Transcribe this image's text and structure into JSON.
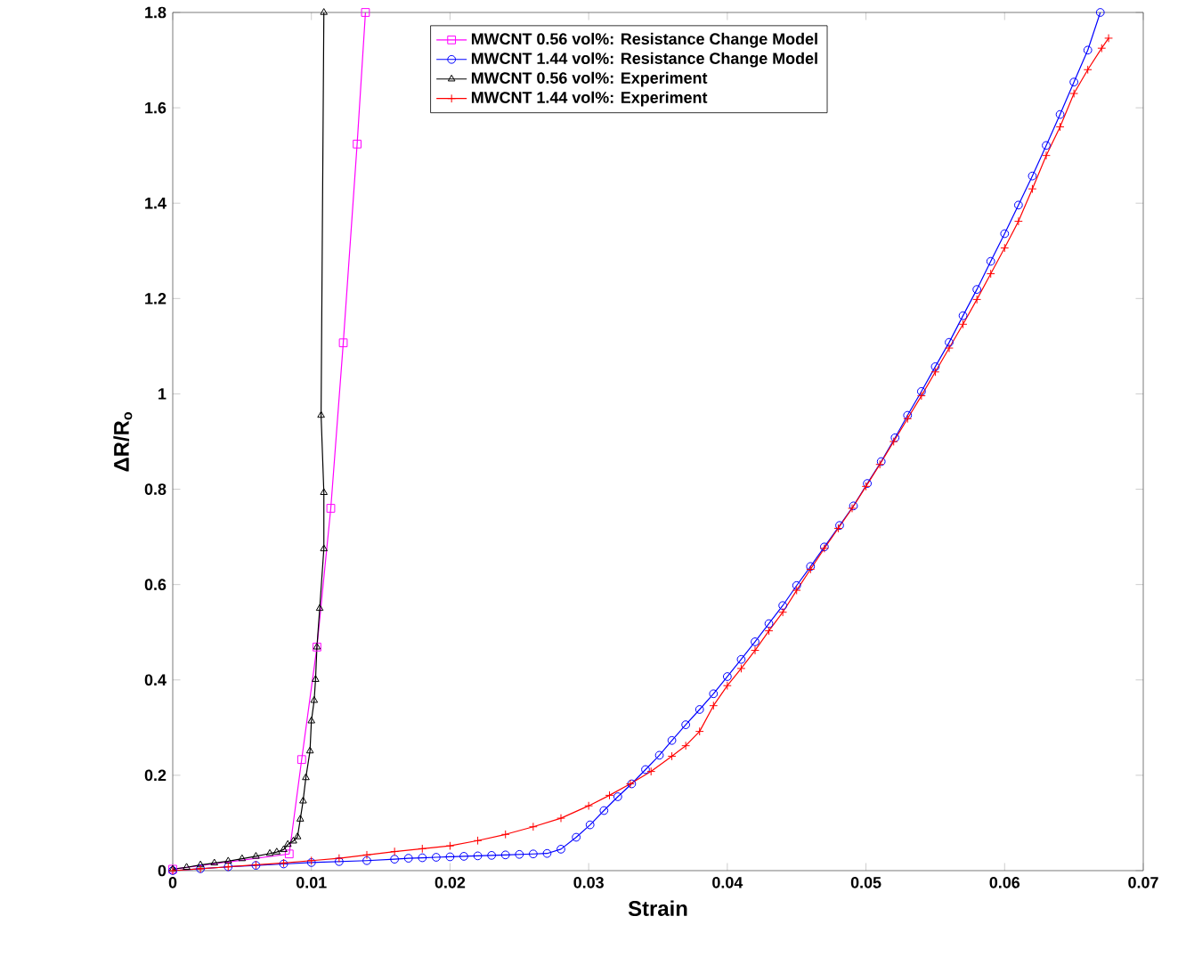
{
  "chart_data": {
    "type": "line",
    "xlabel": "Strain",
    "ylabel": "ΔR/R$_{o}$",
    "xlim": [
      0,
      0.07
    ],
    "ylim": [
      0,
      1.8
    ],
    "xticks": [
      0,
      0.01,
      0.02,
      0.03,
      0.04,
      0.05,
      0.06,
      0.07
    ],
    "yticks": [
      0,
      0.2,
      0.4,
      0.6,
      0.8,
      1,
      1.2,
      1.4,
      1.6,
      1.8
    ],
    "legend": "top",
    "line_style": "solid",
    "series": [
      {
        "name": "MWCNT 0.56 vol%: Resistance Change Model",
        "color": "#ff00ff",
        "marker": "square",
        "x": [
          0,
          0.0084,
          0.0093,
          0.0104,
          0.0114,
          0.0123,
          0.0133,
          0.0139
        ],
        "values": [
          0.003,
          0.035,
          0.233,
          0.469,
          0.76,
          1.107,
          1.524,
          1.8
        ]
      },
      {
        "name": "MWCNT 1.44 vol%: Resistance Change Model",
        "color": "#0000ff",
        "marker": "circle",
        "x": [
          0,
          0.002,
          0.004,
          0.006,
          0.008,
          0.01,
          0.012,
          0.014,
          0.016,
          0.017,
          0.018,
          0.019,
          0.02,
          0.021,
          0.022,
          0.023,
          0.024,
          0.025,
          0.026,
          0.027,
          0.028,
          0.0291,
          0.0301,
          0.0311,
          0.0321,
          0.0331,
          0.0341,
          0.0351,
          0.036,
          0.037,
          0.038,
          0.039,
          0.04,
          0.041,
          0.042,
          0.043,
          0.044,
          0.045,
          0.046,
          0.047,
          0.0481,
          0.0491,
          0.0501,
          0.0511,
          0.0521,
          0.053,
          0.054,
          0.055,
          0.056,
          0.057,
          0.058,
          0.059,
          0.06,
          0.061,
          0.062,
          0.063,
          0.064,
          0.065,
          0.066,
          0.0669
        ],
        "values": [
          0.0,
          0.004,
          0.008,
          0.011,
          0.014,
          0.017,
          0.019,
          0.021,
          0.024,
          0.026,
          0.027,
          0.028,
          0.029,
          0.03,
          0.031,
          0.032,
          0.033,
          0.034,
          0.035,
          0.036,
          0.045,
          0.07,
          0.096,
          0.126,
          0.155,
          0.182,
          0.212,
          0.242,
          0.273,
          0.306,
          0.338,
          0.371,
          0.407,
          0.443,
          0.48,
          0.518,
          0.556,
          0.598,
          0.638,
          0.679,
          0.724,
          0.765,
          0.812,
          0.858,
          0.908,
          0.955,
          1.005,
          1.057,
          1.108,
          1.164,
          1.219,
          1.278,
          1.336,
          1.396,
          1.457,
          1.521,
          1.586,
          1.654,
          1.721,
          1.8
        ]
      },
      {
        "name": "MWCNT 0.56 vol%: Experiment",
        "color": "#000000",
        "marker": "triangle",
        "x": [
          0,
          0.001,
          0.002,
          0.003,
          0.004,
          0.005,
          0.006,
          0.007,
          0.0075,
          0.008,
          0.0083,
          0.0087,
          0.009,
          0.0092,
          0.0094,
          0.0096,
          0.0099,
          0.01,
          0.0102,
          0.0103,
          0.0104,
          0.0106,
          0.0109,
          0.0109,
          0.0107,
          0.0109
        ],
        "values": [
          0.003,
          0.007,
          0.012,
          0.016,
          0.02,
          0.025,
          0.03,
          0.036,
          0.039,
          0.044,
          0.055,
          0.062,
          0.071,
          0.108,
          0.146,
          0.195,
          0.251,
          0.314,
          0.357,
          0.401,
          0.469,
          0.55,
          0.675,
          0.793,
          0.955,
          1.8
        ]
      },
      {
        "name": "MWCNT 1.44 vol%: Experiment",
        "color": "#ff0000",
        "marker": "cross",
        "x": [
          0,
          0.002,
          0.004,
          0.006,
          0.008,
          0.01,
          0.012,
          0.014,
          0.016,
          0.018,
          0.02,
          0.022,
          0.024,
          0.026,
          0.028,
          0.03,
          0.0315,
          0.033,
          0.0345,
          0.036,
          0.037,
          0.038,
          0.039,
          0.04,
          0.041,
          0.042,
          0.043,
          0.044,
          0.045,
          0.046,
          0.047,
          0.048,
          0.049,
          0.05,
          0.051,
          0.052,
          0.053,
          0.054,
          0.055,
          0.056,
          0.057,
          0.058,
          0.059,
          0.06,
          0.061,
          0.062,
          0.063,
          0.064,
          0.065,
          0.066,
          0.067,
          0.0675
        ],
        "values": [
          0,
          0.004,
          0.008,
          0.012,
          0.016,
          0.021,
          0.026,
          0.033,
          0.04,
          0.046,
          0.052,
          0.063,
          0.076,
          0.092,
          0.11,
          0.136,
          0.158,
          0.182,
          0.208,
          0.24,
          0.262,
          0.292,
          0.346,
          0.388,
          0.424,
          0.462,
          0.503,
          0.542,
          0.588,
          0.632,
          0.676,
          0.718,
          0.76,
          0.806,
          0.852,
          0.9,
          0.948,
          0.996,
          1.046,
          1.096,
          1.146,
          1.198,
          1.252,
          1.306,
          1.362,
          1.43,
          1.5,
          1.56,
          1.63,
          1.68,
          1.725,
          1.746
        ]
      }
    ]
  }
}
